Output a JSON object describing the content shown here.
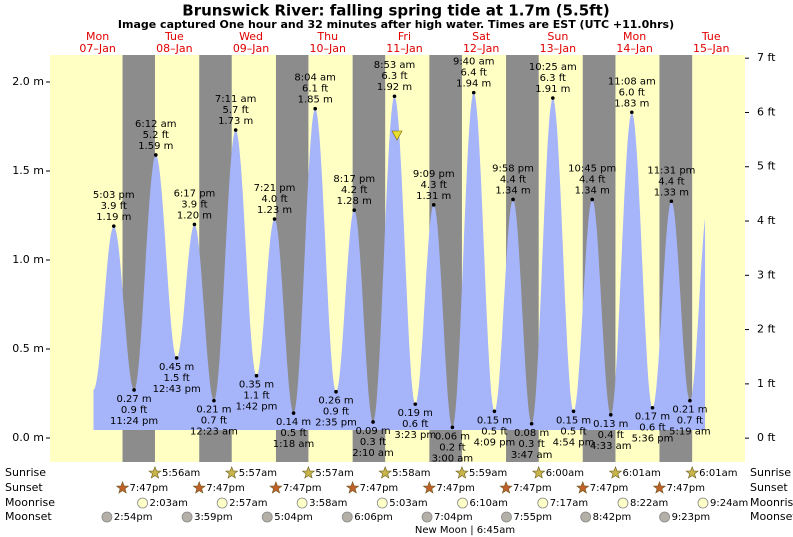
{
  "chart_data": {
    "type": "tide",
    "title": "Brunswick River: falling  spring tide at 1.7m (5.5ft)",
    "subtitle": "Image captured One hour and 32 minutes after high water. Times are EST (UTC +11.0hrs)",
    "day_names": [
      "Mon",
      "Tue",
      "Wed",
      "Thu",
      "Fri",
      "Sat",
      "Sun",
      "Mon",
      "Tue"
    ],
    "day_dates": [
      "07–Jan",
      "08–Jan",
      "09–Jan",
      "10–Jan",
      "11–Jan",
      "12–Jan",
      "13–Jan",
      "14–Jan",
      "15–Jan"
    ],
    "ylim": [
      -0.135,
      2.21
    ],
    "yticks": [
      {
        "value": 0,
        "label": "0.0 m"
      },
      {
        "value": 0.5,
        "label": "0.5 m"
      },
      {
        "value": 1,
        "label": "1.0 m"
      },
      {
        "value": 1.5,
        "label": "1.5 m"
      },
      {
        "value": 2,
        "label": "2.0 m"
      }
    ],
    "y2lim": [
      -0.44,
      7.25
    ],
    "y2ticks": [
      {
        "value": 0,
        "label": "0 ft"
      },
      {
        "value": 1,
        "label": "1 ft"
      },
      {
        "value": 2,
        "label": "2 ft"
      },
      {
        "value": 3,
        "label": "3 ft"
      },
      {
        "value": 4,
        "label": "4 ft"
      },
      {
        "value": 5,
        "label": "5 ft"
      },
      {
        "value": 6,
        "label": "6 ft"
      },
      {
        "value": 7,
        "label": "7 ft"
      }
    ],
    "color": "#a6b4fa",
    "tides": {
      "times": [
        "5:03 pm",
        "11:24 pm",
        "6:12 am",
        "12:43 pm",
        "6:17 pm",
        "12:23 am",
        "7:11 am",
        "1:42 pm",
        "7:21 pm",
        "1:18 am",
        "8:04 am",
        "2:35 pm",
        "8:17 pm",
        "2:10 am",
        "8:53 am",
        "3:23 pm",
        "9:09 pm",
        "3:00 am",
        "9:40 am",
        "4:09 pm",
        "9:58 pm",
        "3:47 am",
        "10:25 am",
        "4:54 pm",
        "10:45 pm",
        "4:33 am",
        "11:08 am",
        "5:36 pm",
        "11:31 pm",
        "5:19 am"
      ],
      "values": [
        1.19,
        0.27,
        1.59,
        0.45,
        1.2,
        0.21,
        1.73,
        0.35,
        1.23,
        0.14,
        1.85,
        0.26,
        1.28,
        0.09,
        1.92,
        0.19,
        1.31,
        0.06,
        1.94,
        0.15,
        1.34,
        0.08,
        1.91,
        0.15,
        1.34,
        0.13,
        1.83,
        0.17,
        1.33,
        0.21
      ],
      "value_labels": [
        "1.19 m",
        "0.27 m",
        "1.59 m",
        "0.45 m",
        "1.20 m",
        "0.21 m",
        "1.73 m",
        "0.35 m",
        "1.23 m",
        "0.14 m",
        "1.85 m",
        "0.26 m",
        "1.28 m",
        "0.09 m",
        "1.92 m",
        "0.19 m",
        "1.31 m",
        "0.06 m",
        "1.94 m",
        "0.15 m",
        "1.34 m",
        "0.08 m",
        "1.91 m",
        "0.15 m",
        "1.34 m",
        "0.13 m",
        "1.83 m",
        "0.17 m",
        "1.33 m",
        "0.21 m"
      ],
      "ft_labels": [
        "3.9 ft",
        "0.9 ft",
        "5.2 ft",
        "1.5 ft",
        "3.9 ft",
        "0.7 ft",
        "5.7 ft",
        "1.1 ft",
        "4.0 ft",
        "0.5 ft",
        "6.1 ft",
        "0.9 ft",
        "4.2 ft",
        "0.3 ft",
        "6.3 ft",
        "0.6 ft",
        "4.3 ft",
        "0.2 ft",
        "6.4 ft",
        "0.5 ft",
        "4.4 ft",
        "0.3 ft",
        "6.3 ft",
        "0.5 ft",
        "4.4 ft",
        "0.4 ft",
        "6.0 ft",
        "0.6 ft",
        "4.4 ft",
        "0.7 ft"
      ]
    },
    "rows": [
      {
        "name": "Sunrise",
        "times": [
          "5:56am",
          "5:57am",
          "5:57am",
          "5:58am",
          "5:59am",
          "6:00am",
          "6:01am",
          "6:01am"
        ]
      },
      {
        "name": "Sunset",
        "times": [
          "7:47pm",
          "7:47pm",
          "7:47pm",
          "7:47pm",
          "7:47pm",
          "7:47pm",
          "7:47pm",
          "7:47pm"
        ]
      },
      {
        "name": "Moonrise",
        "times": [
          "2:03am",
          "2:57am",
          "3:58am",
          "5:03am",
          "6:10am",
          "7:17am",
          "8:22am",
          "9:24am"
        ]
      },
      {
        "name": "Moonset",
        "times": [
          "2:54pm",
          "3:59pm",
          "5:04pm",
          "6:06pm",
          "7:04pm",
          "7:55pm",
          "8:42pm",
          "9:23pm"
        ]
      }
    ],
    "note": "New Moon | 6:45am"
  }
}
